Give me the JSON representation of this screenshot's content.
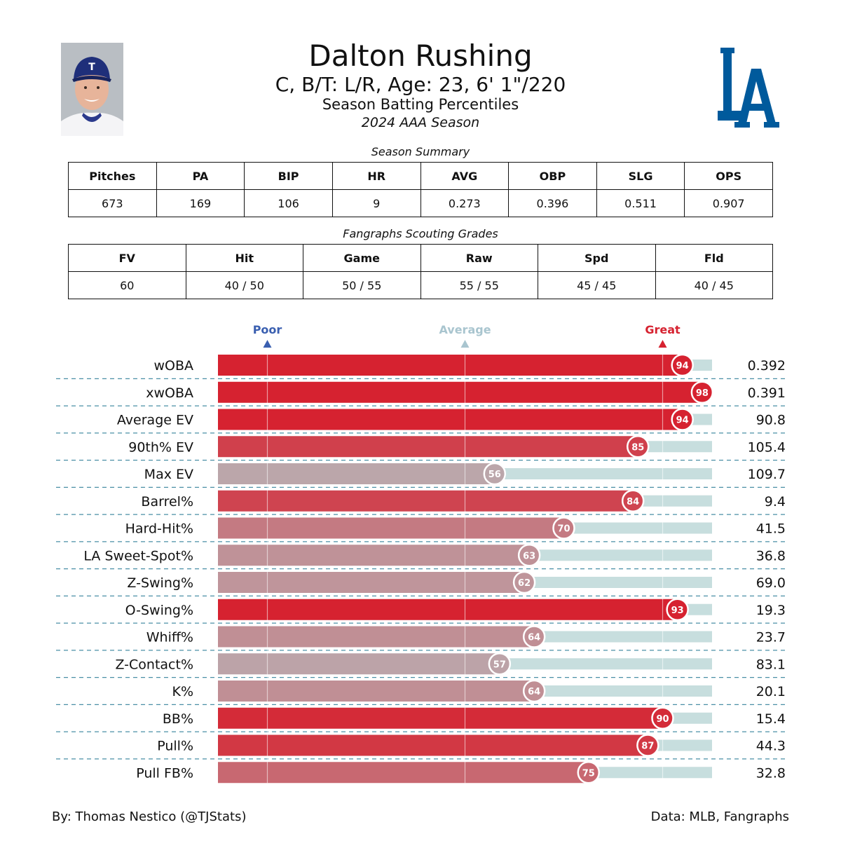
{
  "header": {
    "player_name": "Dalton Rushing",
    "player_info": "C, B/T: L/R, Age: 23, 6' 1\"/220",
    "subtitle": "Season Batting Percentiles",
    "season": "2024 AAA Season"
  },
  "summary": {
    "title": "Season Summary",
    "columns": [
      "Pitches",
      "PA",
      "BIP",
      "HR",
      "AVG",
      "OBP",
      "SLG",
      "OPS"
    ],
    "values": [
      "673",
      "169",
      "106",
      "9",
      "0.273",
      "0.396",
      "0.511",
      "0.907"
    ]
  },
  "grades": {
    "title": "Fangraphs Scouting Grades",
    "columns": [
      "FV",
      "Hit",
      "Game",
      "Raw",
      "Spd",
      "Fld"
    ],
    "values": [
      "60",
      "40 / 50",
      "50 / 55",
      "55 / 55",
      "45 / 45",
      "40 / 45"
    ]
  },
  "colors": {
    "poor": "#3a5fb0",
    "average": "#a9c5cf",
    "great": "#d62230",
    "track": "#c7dede",
    "divider": "#4a8fa6",
    "logo": "#005a9c"
  },
  "chart_data": {
    "type": "bar",
    "orientation": "horizontal",
    "scale_labels": {
      "poor": "Poor",
      "average": "Average",
      "great": "Great"
    },
    "scale_positions": {
      "poor": 10,
      "average": 50,
      "great": 90
    },
    "xlim": [
      0,
      100
    ],
    "categories": [
      "wOBA",
      "xwOBA",
      "Average EV",
      "90th% EV",
      "Max EV",
      "Barrel%",
      "Hard-Hit%",
      "LA Sweet-Spot%",
      "Z-Swing%",
      "O-Swing%",
      "Whiff%",
      "Z-Contact%",
      "K%",
      "BB%",
      "Pull%",
      "Pull FB%"
    ],
    "percentiles": [
      94,
      98,
      94,
      85,
      56,
      84,
      70,
      63,
      62,
      93,
      64,
      57,
      64,
      90,
      87,
      75
    ],
    "stat_values": [
      "0.392",
      "0.391",
      "90.8",
      "105.4",
      "109.7",
      "9.4",
      "41.5",
      "36.8",
      "69.0",
      "19.3",
      "23.7",
      "83.1",
      "20.1",
      "15.4",
      "44.3",
      "32.8"
    ]
  },
  "footer": {
    "credit": "By: Thomas Nestico (@TJStats)",
    "source": "Data: MLB, Fangraphs"
  }
}
